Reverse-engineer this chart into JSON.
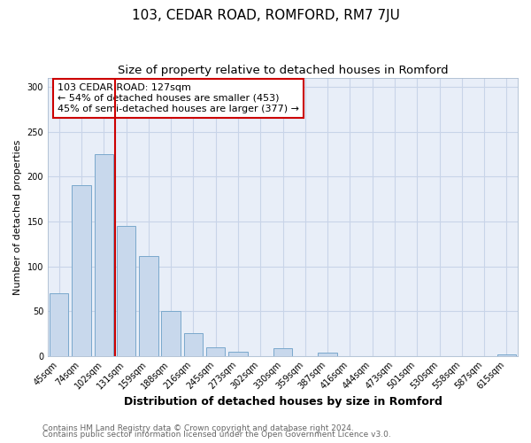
{
  "title": "103, CEDAR ROAD, ROMFORD, RM7 7JU",
  "subtitle": "Size of property relative to detached houses in Romford",
  "xlabel": "Distribution of detached houses by size in Romford",
  "ylabel": "Number of detached properties",
  "bar_labels": [
    "45sqm",
    "74sqm",
    "102sqm",
    "131sqm",
    "159sqm",
    "188sqm",
    "216sqm",
    "245sqm",
    "273sqm",
    "302sqm",
    "330sqm",
    "359sqm",
    "387sqm",
    "416sqm",
    "444sqm",
    "473sqm",
    "501sqm",
    "530sqm",
    "558sqm",
    "587sqm",
    "615sqm"
  ],
  "bar_values": [
    70,
    190,
    225,
    145,
    111,
    50,
    25,
    10,
    5,
    0,
    9,
    0,
    4,
    0,
    0,
    0,
    0,
    0,
    0,
    0,
    2
  ],
  "bar_color": "#c8d8ec",
  "bar_edgecolor": "#7aa8cc",
  "vline_color": "#cc0000",
  "vline_x": 2.5,
  "annotation_title": "103 CEDAR ROAD: 127sqm",
  "annotation_line1": "← 54% of detached houses are smaller (453)",
  "annotation_line2": "45% of semi-detached houses are larger (377) →",
  "annotation_box_facecolor": "#ffffff",
  "annotation_box_edgecolor": "#cc0000",
  "ylim": [
    0,
    310
  ],
  "yticks": [
    0,
    50,
    100,
    150,
    200,
    250,
    300
  ],
  "footer_line1": "Contains HM Land Registry data © Crown copyright and database right 2024.",
  "footer_line2": "Contains public sector information licensed under the Open Government Licence v3.0.",
  "fig_facecolor": "#ffffff",
  "axes_facecolor": "#e8eef8",
  "grid_color": "#c8d4e8",
  "title_fontsize": 11,
  "subtitle_fontsize": 9.5,
  "xlabel_fontsize": 9,
  "ylabel_fontsize": 8,
  "tick_fontsize": 7,
  "annotation_fontsize": 8,
  "footer_fontsize": 6.5
}
